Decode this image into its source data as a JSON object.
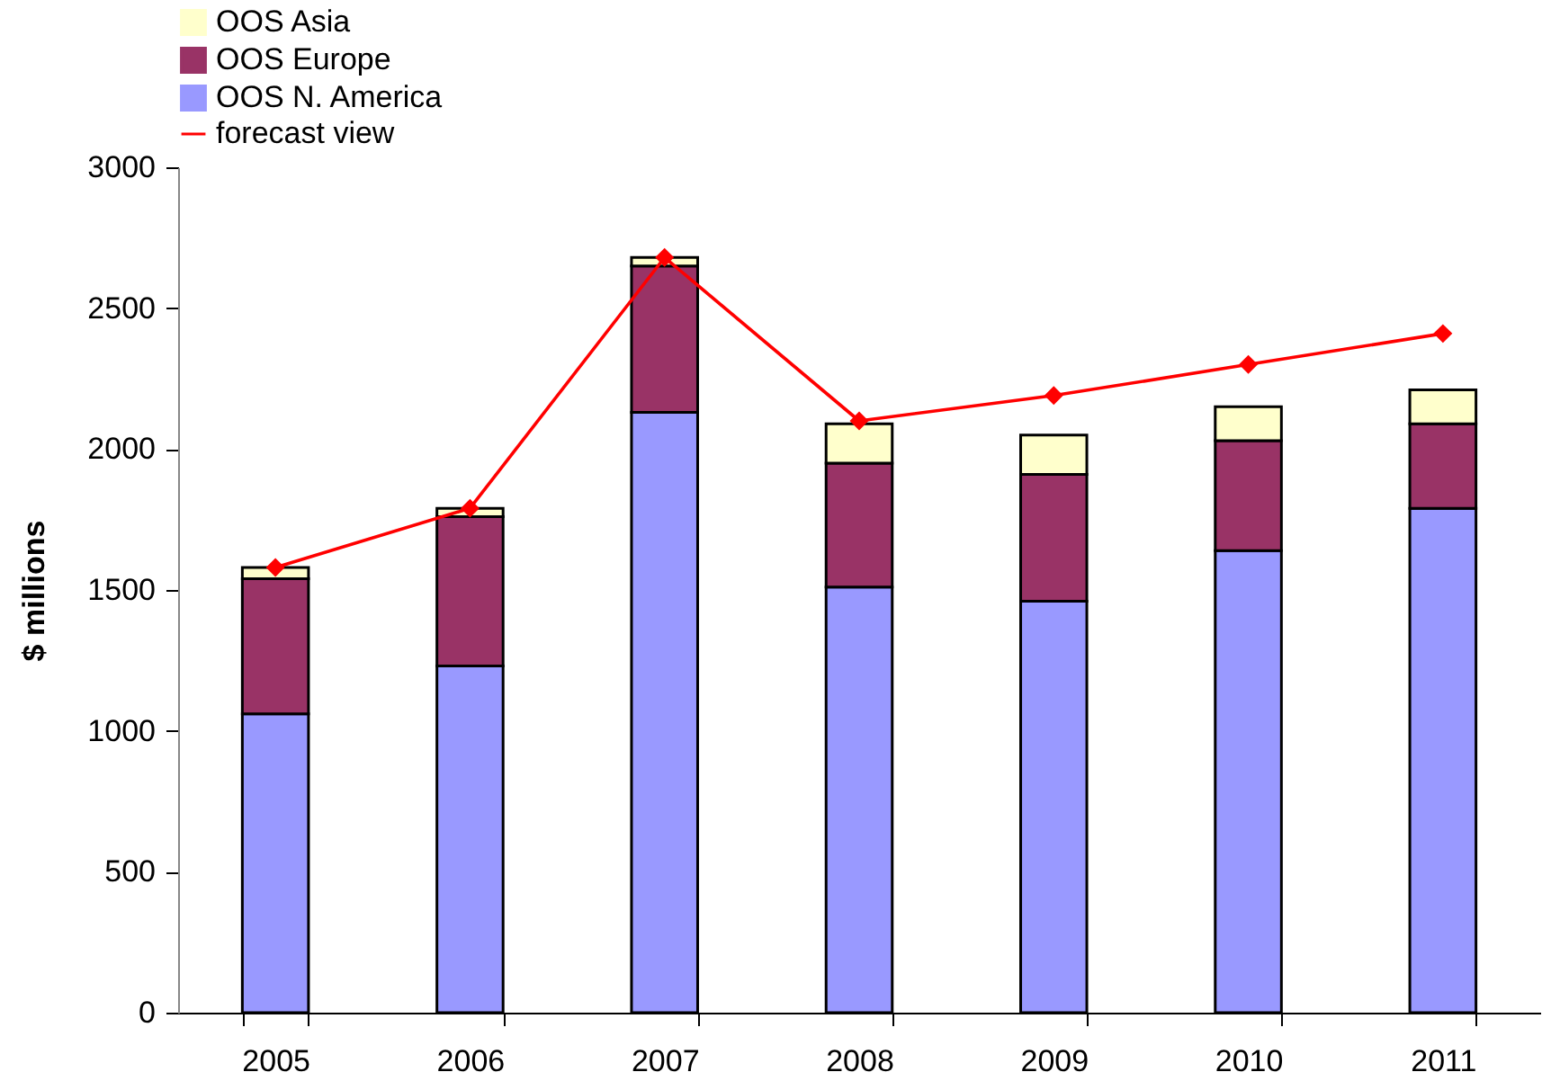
{
  "chart_data": {
    "type": "bar",
    "ylabel": "$ millions",
    "categories": [
      "2005",
      "2006",
      "2007",
      "2008",
      "2009",
      "2010",
      "2011"
    ],
    "stacked": true,
    "series": [
      {
        "name": "OOS N. America",
        "color": "#9999ff",
        "values": [
          1060,
          1230,
          2130,
          1510,
          1460,
          1640,
          1790
        ]
      },
      {
        "name": "OOS Europe",
        "color": "#993366",
        "values": [
          480,
          530,
          520,
          440,
          450,
          390,
          300
        ]
      },
      {
        "name": "OOS Asia",
        "color": "#ffffcc",
        "values": [
          40,
          30,
          30,
          140,
          140,
          120,
          120
        ]
      },
      {
        "name": "forecast view",
        "type": "line",
        "color": "#ff0000",
        "values": [
          1580,
          1790,
          2680,
          2100,
          2190,
          2300,
          2410
        ]
      }
    ],
    "ylim": [
      0,
      3000
    ],
    "yticks": [
      0,
      500,
      1000,
      1500,
      2000,
      2500,
      3000
    ],
    "grid": false,
    "legend": "top",
    "marker": "diamond"
  }
}
